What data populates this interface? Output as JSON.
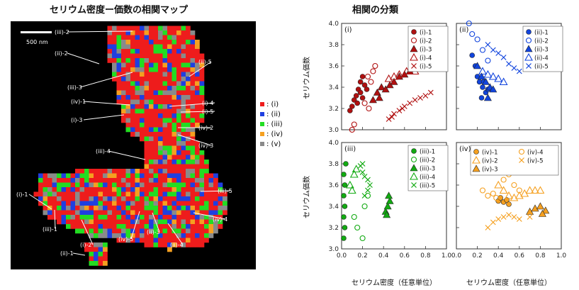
{
  "map": {
    "title": "セリウム密度ー価数の相関マップ",
    "scale_label": "500 nm",
    "colors": {
      "i": "#ee1c1c",
      "ii": "#1f3fe0",
      "iii": "#22dd22",
      "iv": "#f5a020",
      "v": "#8a8a8a"
    },
    "legend": [
      {
        "key": "i",
        "label": ": (i)",
        "color": "#ee1c1c"
      },
      {
        "key": "ii",
        "label": ": (ii)",
        "color": "#1f3fe0"
      },
      {
        "key": "iii",
        "label": ": (iii)",
        "color": "#22dd22"
      },
      {
        "key": "iv",
        "label": ": (iv)",
        "color": "#f5a020"
      },
      {
        "key": "v",
        "label": ": (v)",
        "color": "#8a8a8a"
      }
    ],
    "annotations": [
      "(iii)-2",
      "(ii)-2",
      "(ii)-5",
      "(iii)-3",
      "(i)-4",
      "(iv)-1",
      "(i)-5",
      "(i)-3",
      "(iv)-2",
      "(iv)-3",
      "(iii)-4",
      "(i)-1",
      "(iii)-5",
      "(iii)-1",
      "(iv)-4",
      "(iv)-5",
      "(ii)-3",
      "(i)-2",
      "(ii)-4",
      "(ii)-1"
    ]
  },
  "chart_data": {
    "type": "scatter",
    "title": "相関の分類",
    "xlabel": "セリウム密度（任意単位）",
    "ylabel": "セリウム価数",
    "xlim": [
      0,
      1.0
    ],
    "ylim": [
      3.0,
      4.0
    ],
    "xticks": [
      "0.0",
      "0.2",
      "0.4",
      "0.6",
      "0.8",
      "1.0"
    ],
    "yticks": [
      "3.0",
      "3.2",
      "3.4",
      "3.6",
      "3.8",
      "4.0"
    ],
    "panels": [
      {
        "label": "(i)",
        "color": "#b01010",
        "series": [
          {
            "name": "(i)-1",
            "marker": "circle-filled",
            "points": [
              [
                0.08,
                3.18
              ],
              [
                0.1,
                3.22
              ],
              [
                0.12,
                3.28
              ],
              [
                0.14,
                3.32
              ],
              [
                0.16,
                3.38
              ],
              [
                0.18,
                3.45
              ],
              [
                0.2,
                3.5
              ],
              [
                0.22,
                3.42
              ],
              [
                0.15,
                3.25
              ],
              [
                0.18,
                3.35
              ],
              [
                0.2,
                3.3
              ],
              [
                0.24,
                3.38
              ]
            ]
          },
          {
            "name": "(i)-2",
            "marker": "circle-open",
            "points": [
              [
                0.1,
                3.0
              ],
              [
                0.12,
                3.05
              ],
              [
                0.25,
                3.5
              ],
              [
                0.3,
                3.55
              ],
              [
                0.32,
                3.6
              ],
              [
                0.28,
                3.45
              ],
              [
                0.26,
                3.2
              ],
              [
                0.22,
                3.25
              ]
            ]
          },
          {
            "name": "(i)-3",
            "marker": "triangle-filled",
            "points": [
              [
                0.3,
                3.28
              ],
              [
                0.34,
                3.35
              ],
              [
                0.38,
                3.4
              ],
              [
                0.42,
                3.38
              ],
              [
                0.46,
                3.42
              ],
              [
                0.5,
                3.45
              ],
              [
                0.55,
                3.5
              ],
              [
                0.6,
                3.52
              ],
              [
                0.65,
                3.55
              ],
              [
                0.36,
                3.3
              ]
            ]
          },
          {
            "name": "(i)-4",
            "marker": "triangle-open",
            "points": [
              [
                0.45,
                3.48
              ],
              [
                0.5,
                3.5
              ],
              [
                0.55,
                3.52
              ],
              [
                0.62,
                3.55
              ],
              [
                0.7,
                3.55
              ]
            ]
          },
          {
            "name": "(i)-5",
            "marker": "cross",
            "points": [
              [
                0.45,
                3.1
              ],
              [
                0.5,
                3.15
              ],
              [
                0.55,
                3.18
              ],
              [
                0.6,
                3.22
              ],
              [
                0.65,
                3.25
              ],
              [
                0.7,
                3.28
              ],
              [
                0.75,
                3.3
              ],
              [
                0.8,
                3.32
              ],
              [
                0.85,
                3.35
              ],
              [
                0.48,
                3.12
              ],
              [
                0.58,
                3.2
              ]
            ]
          }
        ]
      },
      {
        "label": "(ii)",
        "color": "#1144dd",
        "series": [
          {
            "name": "(ii)-1",
            "marker": "circle-filled",
            "points": [
              [
                0.15,
                3.7
              ],
              [
                0.18,
                3.6
              ],
              [
                0.2,
                3.5
              ],
              [
                0.22,
                3.45
              ],
              [
                0.25,
                3.4
              ],
              [
                0.28,
                3.35
              ],
              [
                0.3,
                3.38
              ],
              [
                0.24,
                3.3
              ],
              [
                0.26,
                3.45
              ]
            ]
          },
          {
            "name": "(ii)-2",
            "marker": "circle-open",
            "points": [
              [
                0.12,
                4.0
              ],
              [
                0.15,
                3.9
              ],
              [
                0.2,
                3.85
              ],
              [
                0.25,
                3.75
              ],
              [
                0.3,
                3.65
              ]
            ]
          },
          {
            "name": "(ii)-3",
            "marker": "triangle-filled",
            "points": [
              [
                0.2,
                3.6
              ],
              [
                0.24,
                3.5
              ],
              [
                0.28,
                3.45
              ],
              [
                0.32,
                3.4
              ],
              [
                0.35,
                3.38
              ],
              [
                0.3,
                3.3
              ]
            ]
          },
          {
            "name": "(ii)-4",
            "marker": "triangle-open",
            "points": [
              [
                0.25,
                3.55
              ],
              [
                0.3,
                3.52
              ],
              [
                0.35,
                3.5
              ],
              [
                0.4,
                3.48
              ],
              [
                0.45,
                3.45
              ]
            ]
          },
          {
            "name": "(ii)-5",
            "marker": "cross",
            "points": [
              [
                0.3,
                3.8
              ],
              [
                0.35,
                3.75
              ],
              [
                0.4,
                3.72
              ],
              [
                0.45,
                3.68
              ],
              [
                0.5,
                3.62
              ],
              [
                0.55,
                3.58
              ],
              [
                0.6,
                3.55
              ]
            ]
          }
        ]
      },
      {
        "label": "(iii)",
        "color": "#11aa11",
        "series": [
          {
            "name": "(iii)-1",
            "marker": "circle-filled",
            "points": [
              [
                0.02,
                3.1
              ],
              [
                0.03,
                3.2
              ],
              [
                0.02,
                3.3
              ],
              [
                0.03,
                3.4
              ],
              [
                0.02,
                3.5
              ],
              [
                0.03,
                3.6
              ],
              [
                0.02,
                3.7
              ],
              [
                0.04,
                3.8
              ]
            ]
          },
          {
            "name": "(iii)-2",
            "marker": "circle-open",
            "points": [
              [
                0.12,
                3.3
              ],
              [
                0.15,
                3.2
              ],
              [
                0.2,
                3.1
              ],
              [
                0.22,
                3.4
              ],
              [
                0.25,
                3.5
              ]
            ]
          },
          {
            "name": "(iii)-3",
            "marker": "triangle-filled",
            "points": [
              [
                0.42,
                3.35
              ],
              [
                0.44,
                3.4
              ],
              [
                0.46,
                3.45
              ],
              [
                0.45,
                3.5
              ],
              [
                0.43,
                3.32
              ]
            ]
          },
          {
            "name": "(iii)-4",
            "marker": "triangle-open",
            "points": [
              [
                0.08,
                3.6
              ],
              [
                0.1,
                3.55
              ],
              [
                0.12,
                3.7
              ],
              [
                0.14,
                3.75
              ]
            ]
          },
          {
            "name": "(iii)-5",
            "marker": "cross",
            "points": [
              [
                0.18,
                3.78
              ],
              [
                0.2,
                3.72
              ],
              [
                0.22,
                3.68
              ],
              [
                0.25,
                3.65
              ],
              [
                0.27,
                3.6
              ],
              [
                0.25,
                3.55
              ],
              [
                0.22,
                3.5
              ],
              [
                0.2,
                3.8
              ]
            ]
          }
        ]
      },
      {
        "label": "(iv)",
        "color": "#f5a020",
        "series": [
          {
            "name": "(iv)-1",
            "marker": "circle-filled",
            "points": [
              [
                0.4,
                3.45
              ],
              [
                0.42,
                3.48
              ],
              [
                0.45,
                3.44
              ],
              [
                0.48,
                3.46
              ],
              [
                0.5,
                3.42
              ]
            ]
          },
          {
            "name": "(iv)-2",
            "marker": "triangle-open",
            "points": [
              [
                0.4,
                3.6
              ],
              [
                0.45,
                3.55
              ],
              [
                0.5,
                3.5
              ],
              [
                0.55,
                3.48
              ],
              [
                0.6,
                3.5
              ],
              [
                0.65,
                3.52
              ],
              [
                0.7,
                3.55
              ],
              [
                0.75,
                3.55
              ],
              [
                0.8,
                3.55
              ]
            ]
          },
          {
            "name": "(iv)-3",
            "marker": "triangle-filled",
            "points": [
              [
                0.7,
                3.35
              ],
              [
                0.75,
                3.38
              ],
              [
                0.8,
                3.4
              ],
              [
                0.85,
                3.36
              ],
              [
                0.82,
                3.33
              ]
            ]
          },
          {
            "name": "(iv)-4",
            "marker": "circle-open",
            "points": [
              [
                0.25,
                3.55
              ],
              [
                0.3,
                3.5
              ],
              [
                0.35,
                3.52
              ],
              [
                0.38,
                3.48
              ],
              [
                0.45,
                3.65
              ],
              [
                0.5,
                3.7
              ],
              [
                0.55,
                3.6
              ],
              [
                0.6,
                3.55
              ]
            ]
          },
          {
            "name": "(iv)-5",
            "marker": "cross",
            "points": [
              [
                0.3,
                3.2
              ],
              [
                0.35,
                3.25
              ],
              [
                0.4,
                3.28
              ],
              [
                0.45,
                3.3
              ],
              [
                0.5,
                3.32
              ],
              [
                0.55,
                3.3
              ],
              [
                0.6,
                3.28
              ],
              [
                0.7,
                3.3
              ]
            ]
          }
        ]
      }
    ]
  }
}
